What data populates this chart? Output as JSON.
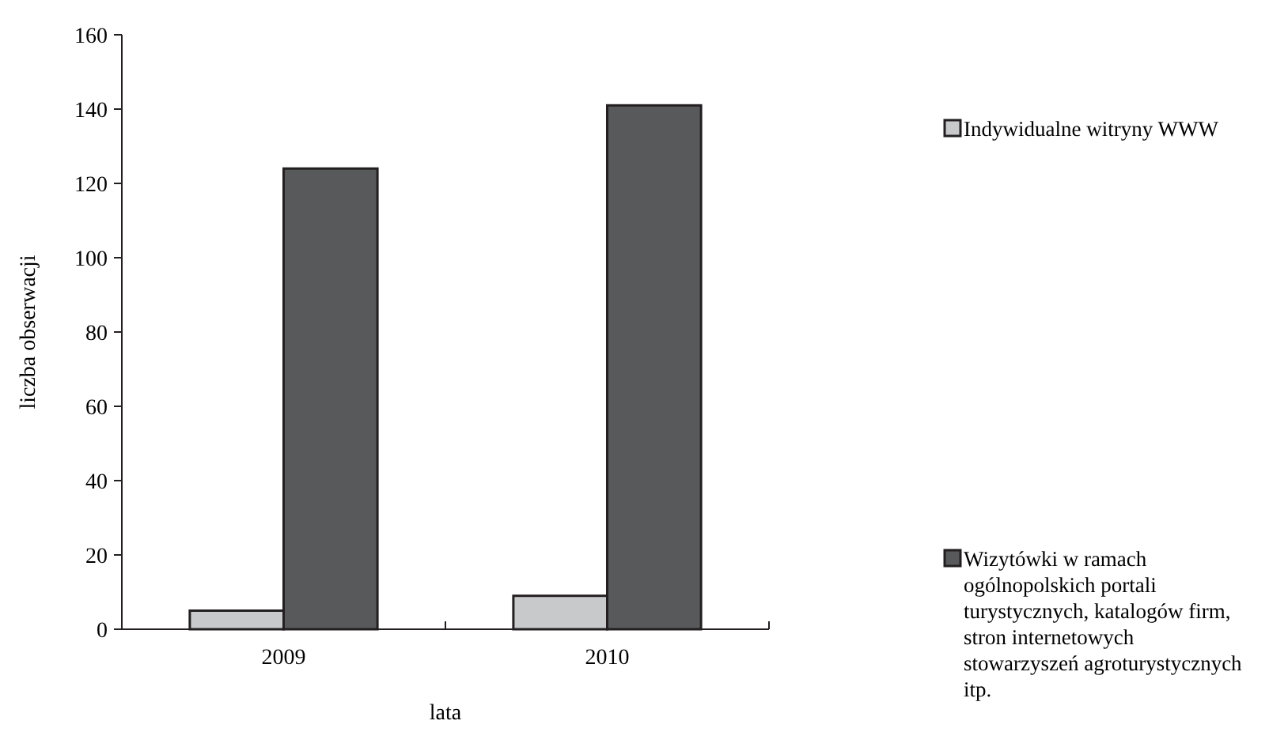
{
  "chart_data": {
    "type": "bar",
    "xlabel": "lata",
    "ylabel": "liczba obserwacji",
    "categories": [
      "2009",
      "2010"
    ],
    "series": [
      {
        "name": "Indywidualne witryny WWW",
        "color": "#c8c9cb",
        "values": [
          5,
          9
        ]
      },
      {
        "name": "Wizytówki w ramach ogólnopolskich portali turystycznych, katalogów firm, stron internetowych stowarzyszeń agroturystycznych itp.",
        "color": "#58595b",
        "values": [
          124,
          141
        ]
      }
    ],
    "ylim": [
      0,
      160
    ],
    "yticks": [
      0,
      20,
      40,
      60,
      80,
      100,
      120,
      140,
      160
    ],
    "grid": false,
    "legend": "right"
  }
}
